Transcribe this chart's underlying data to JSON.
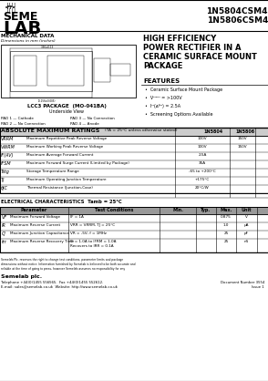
{
  "title_part1": "1N5804CSM4",
  "title_part2": "1N5806CSM4",
  "mech_data_title": "MECHANICAL DATA",
  "mech_data_subtitle": "Dimensions in mm (inches)",
  "header_line1": "HIGH EFFICIENCY",
  "header_line2": "POWER RECTIFIER IN A",
  "header_line3": "CERAMIC SURFACE MOUNT",
  "header_line4": "PACKAGE",
  "features_title": "FEATURES",
  "features": [
    "Ceramic Surface Mount Package",
    "VRRM = >100V",
    "IF(AV) = 2.5A",
    "Screening Options Available"
  ],
  "package_title": "LCC3 PACKAGE  (MO-041BA)",
  "package_sub": "Underside View",
  "pad1": "PAD 1 — Cathode",
  "pad2": "PAD 2 — No Connection",
  "pad3": "PAD 3 — No Connection",
  "pad4": "PAD 4 — Anode",
  "abs_max_title": "ABSOLUTE MAXIMUM RATINGS",
  "abs_max_note": "(TA = 25°C unless otherwise stated)",
  "col1_label": "1N5804",
  "col2_label": "1N5806",
  "abs_rows": [
    [
      "VRRM",
      "Maximum Repetitive Peak Reverse Voltage",
      "100V",
      "150V"
    ],
    [
      "VWRM",
      "Maximum Working Peak Reverse Voltage",
      "100V",
      "150V"
    ],
    [
      "IF(AV)",
      "Maximum Average Forward Current",
      "2.5A",
      ""
    ],
    [
      "IFSM",
      "Maximum Forward Surge Current (Limited by Package)",
      "35A",
      ""
    ],
    [
      "Tstg",
      "Storage Temperature Range",
      "-65 to +200°C",
      ""
    ],
    [
      "TJ",
      "Maximum Operating Junction Temperature",
      "+175°C",
      ""
    ],
    [
      "θJC",
      "Thermal Resistance (Junction-Case)",
      "20°C/W",
      ""
    ]
  ],
  "elec_title": "ELECTRICAL CHARACTERISTICS  Tamb = 25°C",
  "elec_headers": [
    "Parameter",
    "Test Conditions",
    "Min.",
    "Typ.",
    "Max.",
    "Unit"
  ],
  "elec_rows": [
    [
      "VF",
      "Maximum Forward Voltage",
      "IF = 1A",
      "",
      "",
      "0.875",
      "V"
    ],
    [
      "IR",
      "Maximum Reverse Current",
      "VRR = VRRM, TJ = 25°C",
      "",
      "",
      "1.0",
      "μA"
    ],
    [
      "CJ",
      "Maximum Junction Capacitance",
      "VR = -5V, f = 1MHz",
      "",
      "",
      "25",
      "pF"
    ],
    [
      "trr",
      "Maximum Reverse Recovery Time",
      "IF = 1.0A to IFRM = 1.0A\nRecovers to IRR = 0.1A",
      "",
      "",
      "25",
      "nS"
    ]
  ],
  "footer_disclaimer": "Semelab Plc. reserves the right to change test conditions, parameter limits and package dimensions without notice. Information furnished by Semelab is believed to be both accurate and reliable at the time of going to press, however Semelab assumes no responsibility for any errors or omissions discovered in its use. Semelab encourages customers to verify that datasheets are current before placing orders.",
  "footer_company": "Semelab plc.",
  "footer_tel": "Telephone +44(0)1455 556565.",
  "footer_fax": "Fax +44(0)1455 552612.",
  "footer_email": "E-mail: sales@semelab.co.uk",
  "footer_web": "Website: http://www.semelab.co.uk",
  "footer_doc": "Document Number 3554",
  "footer_issue": "Issue 1",
  "bg": "#ffffff"
}
